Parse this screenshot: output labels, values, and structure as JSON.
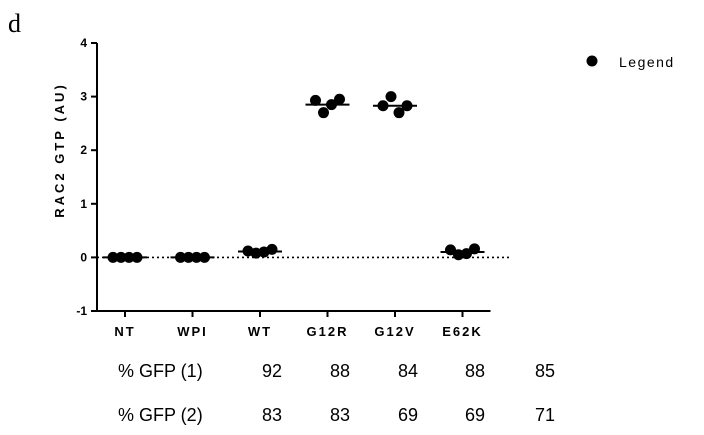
{
  "panel_label": "d",
  "chart_data": {
    "type": "scatter",
    "ylabel": "RAC2 GTP (AU)",
    "ylim": [
      -1,
      4
    ],
    "yticks": [
      "-1",
      "0",
      "1",
      "2",
      "3",
      "4"
    ],
    "categories": [
      "NT",
      "WPI",
      "WT",
      "G12R",
      "G12V",
      "E62K"
    ],
    "series": [
      {
        "name": "Legend",
        "points": [
          [
            0.0,
            0.0,
            0.0,
            0.0
          ],
          [
            0.0,
            0.0,
            0.0,
            0.0
          ],
          [
            0.12,
            0.08,
            0.1,
            0.15
          ],
          [
            2.93,
            2.7,
            2.85,
            2.95
          ],
          [
            2.83,
            3.0,
            2.7,
            2.83
          ],
          [
            0.14,
            0.05,
            0.07,
            0.16
          ]
        ],
        "means": [
          0.0,
          0.0,
          0.11,
          2.85,
          2.83,
          0.1
        ]
      }
    ],
    "baseline": 0,
    "legend_position": "top-right"
  },
  "gfp_table": {
    "rows": [
      {
        "label": "% GFP (1)",
        "values": [
          "92",
          "88",
          "84",
          "88",
          "85"
        ]
      },
      {
        "label": "% GFP (2)",
        "values": [
          "83",
          "83",
          "69",
          "69",
          "71"
        ]
      }
    ]
  }
}
